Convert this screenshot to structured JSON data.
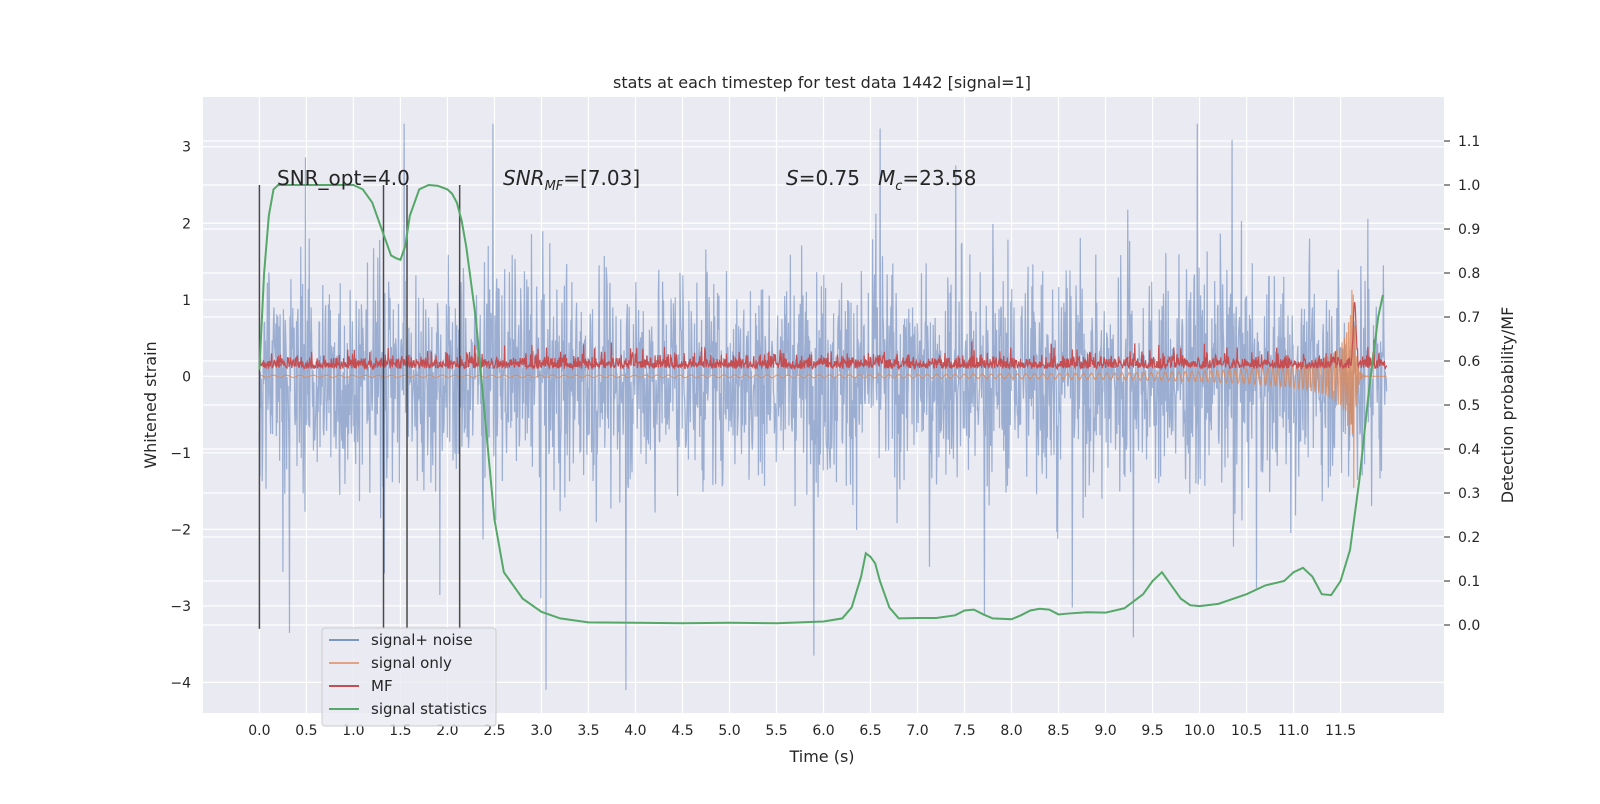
{
  "chart_data": {
    "type": "line",
    "title": "stats at each timestep for test data 1442 [signal=1]",
    "xlabel": "Time (s)",
    "ylabel": "Whitened strain",
    "ylabel_right": "Detection probability/MF",
    "xlim": [
      -0.6,
      12.6
    ],
    "ylim": [
      -4.4,
      3.65
    ],
    "ylim_right": [
      -0.2,
      1.2
    ],
    "x_ticks": [
      0.0,
      0.5,
      1.0,
      1.5,
      2.0,
      2.5,
      3.0,
      3.5,
      4.0,
      4.5,
      5.0,
      5.5,
      6.0,
      6.5,
      7.0,
      7.5,
      8.0,
      8.5,
      9.0,
      9.5,
      10.0,
      10.5,
      11.0,
      11.5
    ],
    "x_tick_labels": [
      "0.0",
      "0.5",
      "1.0",
      "1.5",
      "2.0",
      "2.5",
      "3.0",
      "3.5",
      "4.0",
      "4.5",
      "5.0",
      "5.5",
      "6.0",
      "6.5",
      "7.0",
      "7.5",
      "8.0",
      "8.5",
      "9.0",
      "9.5",
      "10.0",
      "10.5",
      "11.0",
      "11.5"
    ],
    "y_ticks": [
      -4,
      -3,
      -2,
      -1,
      0,
      1,
      2,
      3
    ],
    "y_tick_labels": [
      "−4",
      "−3",
      "−2",
      "−1",
      "0",
      "1",
      "2",
      "3"
    ],
    "y_ticks_right": [
      0.0,
      0.1,
      0.2,
      0.3,
      0.4,
      0.5,
      0.6,
      0.7,
      0.8,
      0.9,
      1.0,
      1.1
    ],
    "y_tick_labels_right": [
      "0.0",
      "0.1",
      "0.2",
      "0.3",
      "0.4",
      "0.5",
      "0.6",
      "0.7",
      "0.8",
      "0.9",
      "1.0",
      "1.1"
    ],
    "grid": true,
    "background": "#eaeaf2",
    "legend_position": "lower-left",
    "annotations": [
      {
        "text": "SNR_opt=4.0",
        "x": 0.2,
        "y": 2.5
      },
      {
        "text": "SNRₘF=[7.03]",
        "x": 2.6,
        "y": 2.5,
        "main": "SNR",
        "sub": "MF",
        "tail": "=[7.03]"
      },
      {
        "text": "S=0.75   M_c=23.58",
        "x": 5.6,
        "y": 2.5,
        "s_label": "S",
        "s_value": "=0.75",
        "mc_main": "M",
        "mc_sub": "c",
        "mc_value": "=23.58"
      }
    ],
    "vertical_markers": [
      0.0,
      1.32,
      1.57,
      2.13
    ],
    "series": [
      {
        "name": "signal+ noise",
        "color": "#4c72b0",
        "alpha": 0.5,
        "kind": "noise",
        "envelope_upper": 2.4,
        "envelope_lower": -2.4,
        "x_range": [
          0.0,
          11.99
        ]
      },
      {
        "name": "signal only",
        "color": "#dd8452",
        "kind": "chirp",
        "merger_time": 11.65
      },
      {
        "name": "MF",
        "color": "#c44e52",
        "kind": "mf",
        "baseline": 0.15,
        "peak_x": 11.65,
        "peak_y": 1.0
      },
      {
        "name": "signal statistics",
        "color": "#55a868",
        "axis": "right",
        "x": [
          0.0,
          0.05,
          0.1,
          0.15,
          0.2,
          0.3,
          0.5,
          0.7,
          0.9,
          1.0,
          1.1,
          1.2,
          1.3,
          1.4,
          1.45,
          1.5,
          1.55,
          1.6,
          1.7,
          1.8,
          1.9,
          2.0,
          2.05,
          2.1,
          2.15,
          2.2,
          2.3,
          2.4,
          2.5,
          2.6,
          2.8,
          3.0,
          3.2,
          3.5,
          4.0,
          4.5,
          5.0,
          5.5,
          6.0,
          6.2,
          6.3,
          6.4,
          6.45,
          6.5,
          6.55,
          6.6,
          6.7,
          6.8,
          7.0,
          7.2,
          7.4,
          7.5,
          7.6,
          7.7,
          7.8,
          8.0,
          8.1,
          8.2,
          8.3,
          8.4,
          8.5,
          8.6,
          8.8,
          9.0,
          9.2,
          9.4,
          9.5,
          9.6,
          9.7,
          9.8,
          9.9,
          10.0,
          10.2,
          10.5,
          10.7,
          10.9,
          11.0,
          11.1,
          11.2,
          11.3,
          11.4,
          11.5,
          11.6,
          11.7,
          11.8,
          11.9,
          11.95
        ],
        "y": [
          0.58,
          0.8,
          0.93,
          0.99,
          1.0,
          1.0,
          1.0,
          1.0,
          1.0,
          1.0,
          0.99,
          0.96,
          0.9,
          0.84,
          0.834,
          0.83,
          0.86,
          0.93,
          0.99,
          1.0,
          0.998,
          0.99,
          0.98,
          0.96,
          0.92,
          0.86,
          0.7,
          0.47,
          0.24,
          0.12,
          0.06,
          0.03,
          0.015,
          0.006,
          0.005,
          0.004,
          0.005,
          0.004,
          0.008,
          0.015,
          0.04,
          0.11,
          0.163,
          0.155,
          0.14,
          0.1,
          0.04,
          0.015,
          0.016,
          0.016,
          0.022,
          0.033,
          0.035,
          0.024,
          0.015,
          0.013,
          0.022,
          0.033,
          0.037,
          0.035,
          0.024,
          0.026,
          0.029,
          0.028,
          0.038,
          0.07,
          0.1,
          0.12,
          0.09,
          0.06,
          0.045,
          0.043,
          0.048,
          0.07,
          0.09,
          0.1,
          0.12,
          0.13,
          0.11,
          0.07,
          0.068,
          0.1,
          0.17,
          0.33,
          0.53,
          0.7,
          0.75
        ]
      }
    ]
  }
}
